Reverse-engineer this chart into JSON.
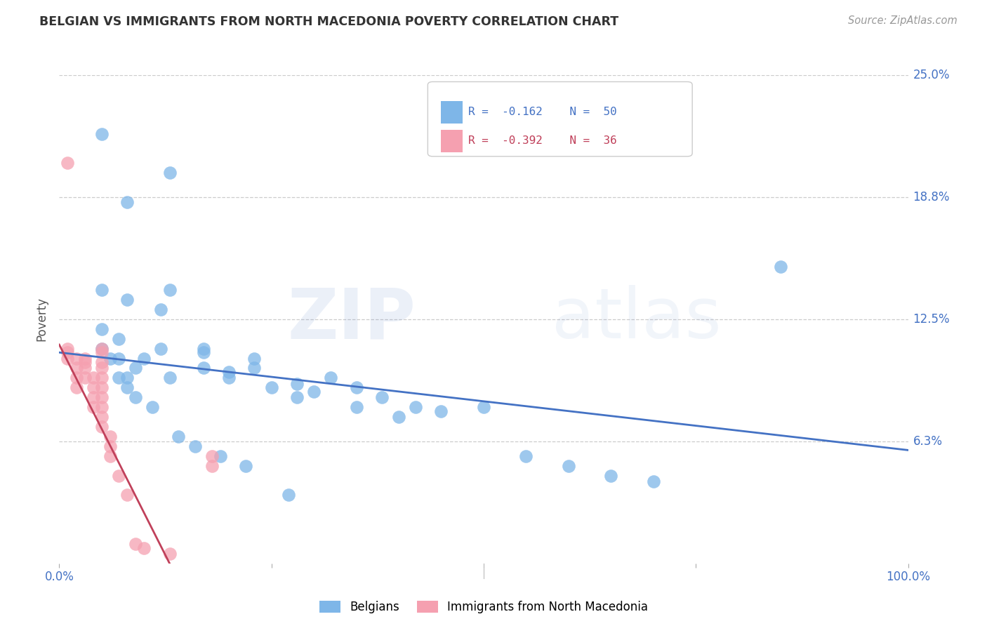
{
  "title": "BELGIAN VS IMMIGRANTS FROM NORTH MACEDONIA POVERTY CORRELATION CHART",
  "source": "Source: ZipAtlas.com",
  "ylabel": "Poverty",
  "xlim": [
    0,
    100
  ],
  "ylim": [
    0,
    25
  ],
  "yticks": [
    0,
    6.25,
    12.5,
    18.75,
    25.0
  ],
  "ytick_labels": [
    "",
    "6.3%",
    "12.5%",
    "18.8%",
    "25.0%"
  ],
  "xtick_labels": [
    "0.0%",
    "",
    "",
    "",
    "100.0%"
  ],
  "grid_color": "#cccccc",
  "background_color": "#ffffff",
  "belgians_color": "#7EB6E8",
  "macedonians_color": "#F5A0B0",
  "belgians_line_color": "#4472C4",
  "macedonians_line_color": "#C0405A",
  "legend_label_blue": "Belgians",
  "legend_label_pink": "Immigrants from North Macedonia",
  "watermark_zip": "ZIP",
  "watermark_atlas": "atlas",
  "blue_line_x0": 0,
  "blue_line_y0": 10.8,
  "blue_line_x1": 100,
  "blue_line_y1": 5.8,
  "pink_line_x0": 0,
  "pink_line_y0": 11.2,
  "pink_line_x1": 13,
  "pink_line_y1": 0.0,
  "blue_scatter_x": [
    5,
    8,
    13,
    8,
    5,
    7,
    5,
    7,
    9,
    7,
    12,
    12,
    10,
    8,
    13,
    17,
    17,
    17,
    20,
    20,
    23,
    23,
    25,
    28,
    28,
    30,
    32,
    35,
    35,
    38,
    40,
    42,
    45,
    50,
    55,
    60,
    65,
    5,
    6,
    8,
    9,
    11,
    14,
    16,
    19,
    22,
    27,
    85,
    13,
    70
  ],
  "blue_scatter_y": [
    22,
    18.5,
    20,
    13.5,
    12,
    11.5,
    11,
    10.5,
    10,
    9.5,
    13,
    11,
    10.5,
    9,
    9.5,
    11,
    10.8,
    10,
    9.8,
    9.5,
    10.5,
    10,
    9,
    9.2,
    8.5,
    8.8,
    9.5,
    9,
    8,
    8.5,
    7.5,
    8,
    7.8,
    8,
    5.5,
    5,
    4.5,
    14,
    10.5,
    9.5,
    8.5,
    8,
    6.5,
    6,
    5.5,
    5,
    3.5,
    15.2,
    14,
    4.2
  ],
  "pink_scatter_x": [
    1,
    1,
    1,
    1,
    2,
    2,
    2,
    2,
    3,
    3,
    3,
    3,
    4,
    4,
    4,
    4,
    5,
    5,
    5,
    5,
    5,
    5,
    5,
    5,
    5,
    5,
    6,
    6,
    6,
    7,
    8,
    9,
    10,
    13,
    18,
    18
  ],
  "pink_scatter_y": [
    20.5,
    11,
    10.8,
    10.5,
    10.5,
    10,
    9.5,
    9.0,
    10.5,
    10.3,
    10.0,
    9.5,
    9.5,
    9.0,
    8.5,
    8.0,
    11,
    10.8,
    10.3,
    10.0,
    9.5,
    9.0,
    8.5,
    8.0,
    7.5,
    7.0,
    6.5,
    6.0,
    5.5,
    4.5,
    3.5,
    1.0,
    0.8,
    0.5,
    5.5,
    5.0
  ]
}
